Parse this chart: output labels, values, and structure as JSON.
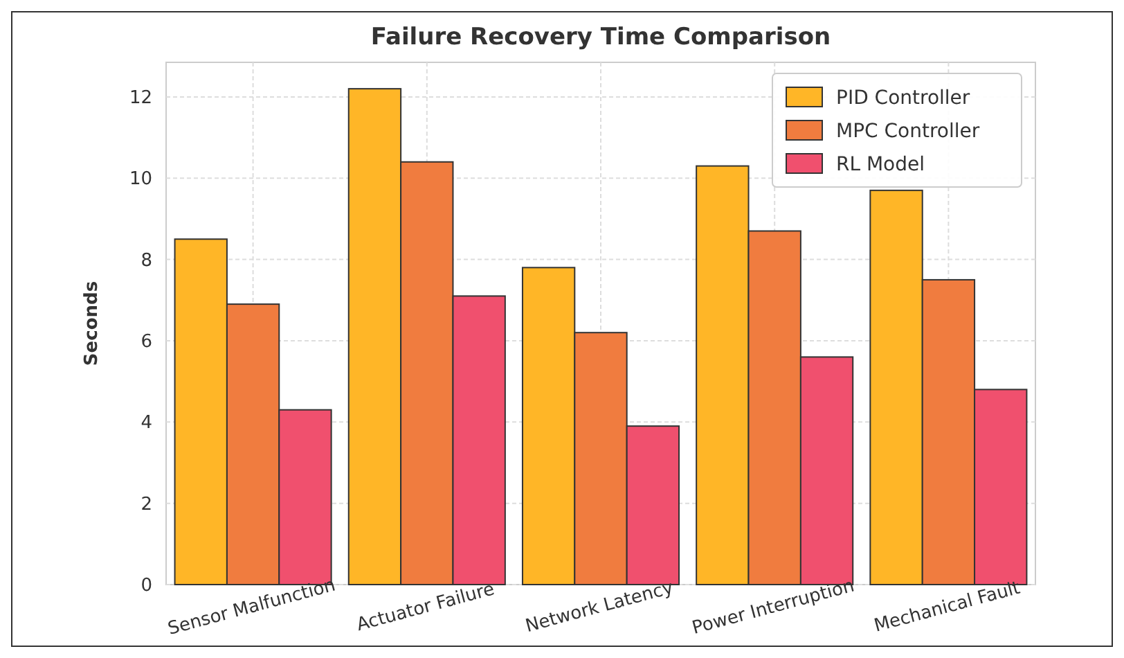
{
  "chart_data": {
    "type": "bar",
    "title": "Failure Recovery Time Comparison",
    "ylabel": "Seconds",
    "categories": [
      "Sensor Malfunction",
      "Actuator Failure",
      "Network Latency",
      "Power Interruption",
      "Mechanical Fault"
    ],
    "series": [
      {
        "name": "PID Controller",
        "color": "#ffb627",
        "values": [
          8.5,
          12.2,
          7.8,
          10.3,
          9.7
        ]
      },
      {
        "name": "MPC Controller",
        "color": "#f07c3f",
        "values": [
          6.9,
          10.4,
          6.2,
          8.7,
          7.5
        ]
      },
      {
        "name": "RL Model",
        "color": "#f0506e",
        "values": [
          4.3,
          7.1,
          3.9,
          5.6,
          4.8
        ]
      }
    ],
    "ylim": [
      0,
      12.85
    ],
    "yticks": [
      0,
      2,
      4,
      6,
      8,
      10,
      12
    ],
    "grid": true,
    "legend": "top right"
  }
}
